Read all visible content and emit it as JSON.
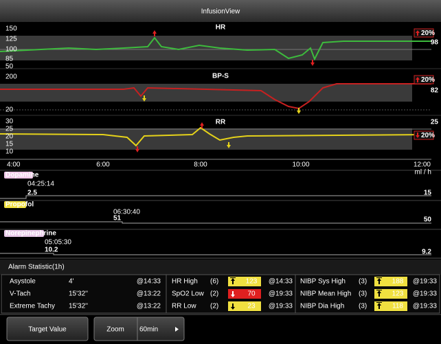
{
  "title": "InfusionView",
  "trends": [
    {
      "name": "HR",
      "axis_labels": [
        "150",
        "125",
        "100",
        "85",
        "50"
      ],
      "badge": "20%",
      "value": "98"
    },
    {
      "name": "BP-S",
      "axis_labels": [
        "200",
        "20"
      ],
      "badge": "20%",
      "value": "82"
    },
    {
      "name": "RR",
      "axis_labels": [
        "30",
        "25",
        "20",
        "15",
        "10"
      ],
      "badge": "20%",
      "value": "25"
    }
  ],
  "time_axis": [
    "4:00",
    "6:00",
    "8:00",
    "10:00",
    "12:00"
  ],
  "unit": "ml / h",
  "drugs": [
    {
      "name": "Dopamine",
      "time": "04:25:14",
      "start": "2.5",
      "current": "15"
    },
    {
      "name": "Propofol",
      "time": "06:30:40",
      "start": "51",
      "current": "50"
    },
    {
      "name": "Norepinephrine",
      "time": "05:05:30",
      "start": "10.2",
      "current": "9.2"
    }
  ],
  "alarm_statistic": {
    "title": "Alarm Statistic(1h)",
    "arrhythmia": [
      [
        "Asystole",
        "4'",
        "@14:33"
      ],
      [
        "V-Tach",
        "15'32''",
        "@13:22"
      ],
      [
        "Extreme Tachy",
        "15'32''",
        "@13:22"
      ]
    ],
    "physio": [
      [
        "HR High",
        "(6)",
        "123",
        "@14:33"
      ],
      [
        "SpO2 Low",
        "(2)",
        "70",
        "@19:33"
      ],
      [
        "RR Low",
        "(2)",
        "23",
        "@19:33"
      ]
    ],
    "nibp": [
      [
        "NIBP Sys High",
        "(3)",
        "188",
        "@19:33"
      ],
      [
        "NIBP Mean High",
        "(3)",
        "123",
        "@19:33"
      ],
      [
        "NIBP Dia High",
        "(3)",
        "118",
        "@19:33"
      ]
    ]
  },
  "buttons": [
    "Target Value",
    "Zoom",
    "60min"
  ]
}
